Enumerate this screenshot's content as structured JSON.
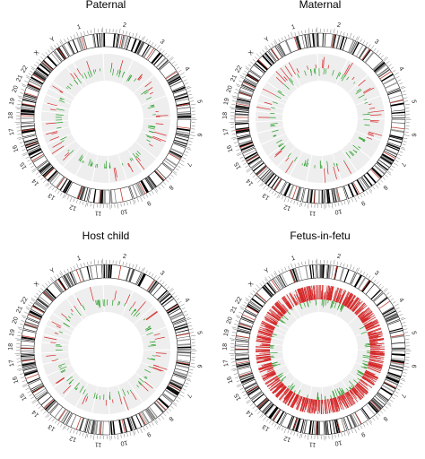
{
  "panels": [
    {
      "title": "Paternal",
      "density": "sparse",
      "colors": {
        "gain": "#d62728",
        "loss": "#2ca02c"
      }
    },
    {
      "title": "Maternal",
      "density": "sparse",
      "colors": {
        "gain": "#d62728",
        "loss": "#2ca02c"
      }
    },
    {
      "title": "Host child",
      "density": "sparse",
      "colors": {
        "gain": "#d62728",
        "loss": "#2ca02c"
      }
    },
    {
      "title": "Fetus-in-fetu",
      "density": "dense",
      "colors": {
        "gain": "#d62728",
        "loss": "#2ca02c"
      }
    }
  ],
  "chromosomes": [
    "1",
    "2",
    "3",
    "4",
    "5",
    "6",
    "7",
    "8",
    "9",
    "10",
    "11",
    "12",
    "13",
    "14",
    "15",
    "16",
    "17",
    "18",
    "19",
    "20",
    "21",
    "22",
    "X",
    "Y"
  ],
  "colors": {
    "track_bg": "#eeeeee",
    "band": "#000000",
    "centromere": "#c0392b"
  }
}
